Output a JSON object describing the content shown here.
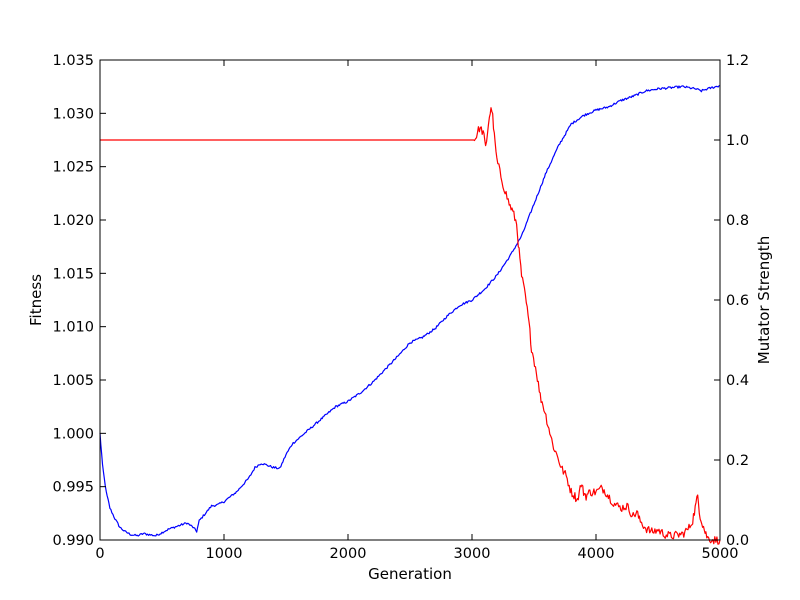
{
  "chart_data": {
    "type": "line",
    "title": "",
    "xlabel": "Generation",
    "ylabel_left": "Fitness",
    "ylabel_right": "Mutator Strength",
    "xlim": [
      0,
      5000
    ],
    "ylim_left": [
      0.99,
      1.035
    ],
    "ylim_right": [
      0.0,
      1.2
    ],
    "xticks": [
      "0",
      "1000",
      "2000",
      "3000",
      "4000",
      "5000"
    ],
    "yticks_left": [
      "0.990",
      "0.995",
      "1.000",
      "1.005",
      "1.010",
      "1.015",
      "1.020",
      "1.025",
      "1.030",
      "1.035"
    ],
    "yticks_right": [
      "0.0",
      "0.2",
      "0.4",
      "0.6",
      "0.8",
      "1.0",
      "1.2"
    ],
    "grid": false,
    "series": [
      {
        "axis": "left",
        "color": "#0000ff",
        "x": [
          0,
          20,
          50,
          80,
          120,
          160,
          200,
          250,
          300,
          350,
          400,
          450,
          500,
          550,
          600,
          650,
          700,
          750,
          780,
          800,
          850,
          900,
          950,
          1000,
          1100,
          1200,
          1250,
          1300,
          1350,
          1400,
          1450,
          1500,
          1550,
          1600,
          1700,
          1800,
          1900,
          2000,
          2100,
          2200,
          2300,
          2400,
          2500,
          2600,
          2700,
          2800,
          2900,
          3000,
          3100,
          3200,
          3300,
          3400,
          3500,
          3600,
          3700,
          3800,
          3900,
          4000,
          4100,
          4200,
          4300,
          4400,
          4500,
          4600,
          4700,
          4800,
          4850,
          4900,
          5000
        ],
        "y": [
          1.0,
          0.997,
          0.9945,
          0.993,
          0.992,
          0.9912,
          0.9908,
          0.9905,
          0.9904,
          0.9906,
          0.9905,
          0.9904,
          0.9907,
          0.991,
          0.9912,
          0.9914,
          0.9916,
          0.9912,
          0.9908,
          0.9918,
          0.9925,
          0.9932,
          0.9933,
          0.9936,
          0.9945,
          0.9958,
          0.9968,
          0.9972,
          0.997,
          0.9968,
          0.9967,
          0.998,
          0.999,
          0.9995,
          1.0005,
          1.0015,
          1.0025,
          1.003,
          1.0038,
          1.0048,
          1.006,
          1.0072,
          1.0085,
          1.009,
          1.0098,
          1.011,
          1.012,
          1.0125,
          1.0135,
          1.0148,
          1.0165,
          1.0185,
          1.0215,
          1.0245,
          1.027,
          1.029,
          1.0298,
          1.0303,
          1.0306,
          1.0312,
          1.0316,
          1.0321,
          1.0323,
          1.0324,
          1.0325,
          1.0323,
          1.0321,
          1.0323,
          1.0326
        ]
      },
      {
        "axis": "right",
        "color": "#ff0000",
        "x": [
          0,
          1000,
          2000,
          3000,
          3020,
          3060,
          3090,
          3110,
          3140,
          3160,
          3180,
          3200,
          3250,
          3300,
          3330,
          3360,
          3380,
          3400,
          3430,
          3460,
          3480,
          3520,
          3550,
          3580,
          3620,
          3650,
          3700,
          3720,
          3760,
          3800,
          3830,
          3850,
          3880,
          3900,
          3920,
          3950,
          4000,
          4050,
          4080,
          4100,
          4150,
          4200,
          4250,
          4300,
          4330,
          4350,
          4400,
          4450,
          4500,
          4550,
          4600,
          4650,
          4700,
          4750,
          4780,
          4800,
          4820,
          4840,
          4860,
          4880,
          4900,
          4950,
          5000
        ],
        "y": [
          1.0,
          1.0,
          1.0,
          1.0,
          1.0,
          1.03,
          1.02,
          0.98,
          1.06,
          1.08,
          1.01,
          0.95,
          0.89,
          0.84,
          0.82,
          0.79,
          0.72,
          0.66,
          0.61,
          0.54,
          0.48,
          0.42,
          0.36,
          0.33,
          0.28,
          0.24,
          0.2,
          0.18,
          0.16,
          0.12,
          0.11,
          0.1,
          0.14,
          0.12,
          0.11,
          0.12,
          0.12,
          0.13,
          0.12,
          0.11,
          0.09,
          0.08,
          0.085,
          0.06,
          0.07,
          0.05,
          0.03,
          0.02,
          0.025,
          0.015,
          0.01,
          0.012,
          0.015,
          0.03,
          0.05,
          0.08,
          0.11,
          0.06,
          0.04,
          0.02,
          0.005,
          0.0,
          0.0
        ]
      }
    ]
  }
}
